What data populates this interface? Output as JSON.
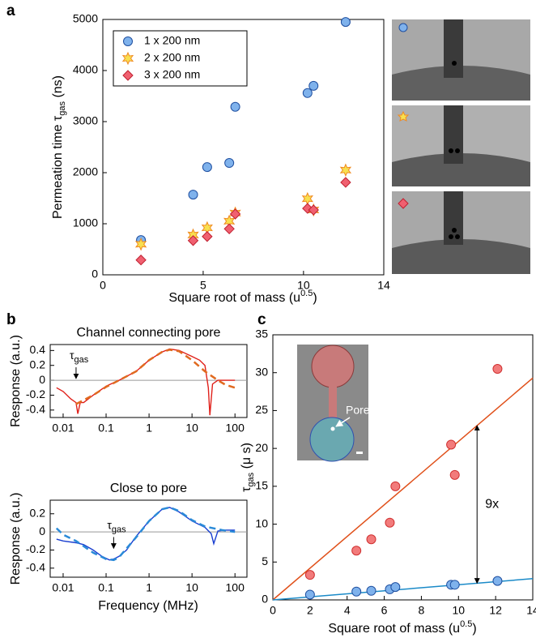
{
  "chart_data": [
    {
      "type": "scatter",
      "panel_label": "a",
      "x_label": {
        "text": "Square root of mass (u",
        "sup": "0.5",
        "suffix": ")"
      },
      "y_label": {
        "text": "Permeation time τ",
        "sub": "gas",
        "suffix": " (ns)"
      },
      "xlim": [
        0,
        14
      ],
      "xticks": [
        0,
        5,
        10,
        14
      ],
      "ylim": [
        0,
        5000
      ],
      "yticks": [
        0,
        1000,
        2000,
        3000,
        4000,
        5000
      ],
      "legend": "upper left",
      "x": [
        1.9,
        4.5,
        5.2,
        6.3,
        6.6,
        10.2,
        10.5,
        12.1
      ],
      "series": [
        {
          "name": "1 x 200 nm",
          "marker": "circle",
          "color": "#7fb2ec",
          "edge": "#1f4fa0",
          "values": [
            680,
            1570,
            2110,
            2190,
            3290,
            3560,
            3700,
            4950
          ]
        },
        {
          "name": "2 x 200 nm",
          "marker": "star",
          "color": "#f8e050",
          "edge": "#f08a20",
          "values": [
            600,
            780,
            920,
            1050,
            1210,
            1490,
            1270,
            2050
          ]
        },
        {
          "name": "3 x 200 nm",
          "marker": "diamond",
          "color": "#f06070",
          "edge": "#c02030",
          "values": [
            290,
            670,
            750,
            900,
            1190,
            1300,
            1270,
            1810
          ]
        }
      ]
    },
    {
      "type": "line",
      "panel_label": "b",
      "title": "Channel connecting pore",
      "y_label": {
        "text": "Response (a.u.)"
      },
      "xscale": "log",
      "xlim": [
        0.005,
        190
      ],
      "xticks": [
        0.01,
        0.1,
        1,
        10,
        100
      ],
      "ylim": [
        -0.5,
        0.48
      ],
      "yticks": [
        -0.4,
        -0.2,
        0,
        0.2,
        0.4
      ],
      "zero_line": true,
      "annotation": {
        "text": "τ",
        "sub": "gas",
        "x": 0.02,
        "y": 0
      },
      "series": [
        {
          "color": "#e0201a",
          "style": "solid",
          "x": [
            0.007,
            0.01,
            0.015,
            0.02,
            0.022,
            0.025,
            0.03,
            0.05,
            0.1,
            0.2,
            0.5,
            1,
            2,
            3,
            5,
            10,
            15,
            20,
            24,
            26,
            30,
            40,
            60,
            100
          ],
          "values": [
            -0.1,
            -0.15,
            -0.25,
            -0.3,
            -0.45,
            -0.3,
            -0.3,
            -0.2,
            -0.08,
            0,
            0.12,
            0.27,
            0.38,
            0.42,
            0.4,
            0.32,
            0.27,
            0.2,
            -0.1,
            -0.47,
            -0.05,
            0,
            0,
            0
          ]
        },
        {
          "color": "#e06a20",
          "style": "dashed",
          "x": [
            0.02,
            0.05,
            0.1,
            0.2,
            0.5,
            1,
            2,
            3,
            5,
            10,
            20,
            40,
            60,
            100
          ],
          "values": [
            -0.32,
            -0.2,
            -0.09,
            0,
            0.12,
            0.27,
            0.38,
            0.41,
            0.39,
            0.27,
            0.12,
            0,
            -0.06,
            -0.1
          ]
        }
      ]
    },
    {
      "type": "line",
      "title": "Close to pore",
      "x_label": {
        "text": "Frequency (MHz)"
      },
      "y_label": {
        "text": "Response (a.u.)"
      },
      "xscale": "log",
      "xlim": [
        0.005,
        190
      ],
      "xticks": [
        0.01,
        0.1,
        1,
        10,
        100
      ],
      "ylim": [
        -0.5,
        0.35
      ],
      "yticks": [
        -0.4,
        -0.2,
        0,
        0.2
      ],
      "zero_line": true,
      "annotation": {
        "text": "τ",
        "sub": "gas",
        "x": 0.15,
        "y": -0.2
      },
      "series": [
        {
          "color": "#1a3fd0",
          "style": "solid",
          "x": [
            0.007,
            0.01,
            0.02,
            0.03,
            0.05,
            0.08,
            0.12,
            0.15,
            0.2,
            0.3,
            0.5,
            1,
            2,
            3,
            5,
            10,
            20,
            28,
            32,
            40,
            60,
            100
          ],
          "values": [
            -0.08,
            -0.1,
            -0.12,
            -0.14,
            -0.2,
            -0.27,
            -0.31,
            -0.3,
            -0.27,
            -0.2,
            -0.05,
            0.12,
            0.25,
            0.27,
            0.22,
            0.12,
            0.05,
            -0.02,
            -0.13,
            0.01,
            0.02,
            0.02
          ]
        },
        {
          "color": "#2a8ad8",
          "style": "dashed",
          "x": [
            0.007,
            0.01,
            0.02,
            0.05,
            0.1,
            0.15,
            0.2,
            0.5,
            1,
            2,
            3,
            5,
            10,
            20,
            50,
            100
          ],
          "values": [
            0.04,
            -0.03,
            -0.1,
            -0.23,
            -0.3,
            -0.31,
            -0.28,
            -0.06,
            0.12,
            0.25,
            0.27,
            0.23,
            0.13,
            0.06,
            0.02,
            0
          ]
        }
      ]
    },
    {
      "type": "scatter",
      "panel_label": "c",
      "x_label": {
        "text": "Square root of mass (u",
        "sup": "0.5",
        "suffix": ")"
      },
      "y_label": {
        "text": "τ",
        "sub": "gas",
        "suffix": " (μ s)"
      },
      "xlim": [
        0,
        14
      ],
      "xticks": [
        0,
        2,
        4,
        6,
        8,
        10,
        12,
        14
      ],
      "ylim": [
        0,
        35
      ],
      "yticks": [
        0,
        5,
        10,
        15,
        20,
        25,
        30,
        35
      ],
      "x": [
        2,
        4.5,
        5.3,
        6.3,
        6.6,
        9.6,
        9.8,
        12.1
      ],
      "series": [
        {
          "marker": "circle",
          "color": "#f27b7b",
          "edge": "#d03030",
          "values": [
            3.3,
            6.5,
            8,
            10.2,
            15,
            20.5,
            16.5,
            30.5
          ]
        },
        {
          "marker": "circle",
          "color": "#7fb2ec",
          "edge": "#1f4fa0",
          "values": [
            0.7,
            1.1,
            1.2,
            1.4,
            1.7,
            2,
            2,
            2.5
          ]
        }
      ],
      "fits": [
        {
          "color": "#e0501a",
          "x": [
            0,
            14
          ],
          "values": [
            0,
            29.3
          ]
        },
        {
          "color": "#1a8ac8",
          "x": [
            0,
            14
          ],
          "values": [
            0,
            2.8
          ]
        }
      ],
      "annotation": {
        "text": "9x",
        "x": 11
      },
      "inset_label": "Pore"
    }
  ]
}
